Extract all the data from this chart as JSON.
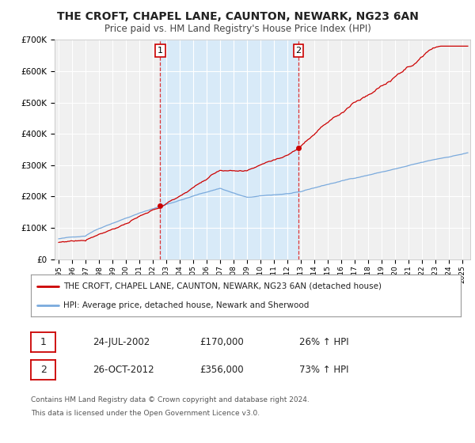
{
  "title": "THE CROFT, CHAPEL LANE, CAUNTON, NEWARK, NG23 6AN",
  "subtitle": "Price paid vs. HM Land Registry's House Price Index (HPI)",
  "ylim": [
    0,
    700000
  ],
  "yticks": [
    0,
    100000,
    200000,
    300000,
    400000,
    500000,
    600000,
    700000
  ],
  "ytick_labels": [
    "£0",
    "£100K",
    "£200K",
    "£300K",
    "£400K",
    "£500K",
    "£600K",
    "£700K"
  ],
  "xlim_start": 1994.7,
  "xlim_end": 2025.6,
  "background_color": "#ffffff",
  "plot_bg_color": "#f0f0f0",
  "grid_color": "#ffffff",
  "highlight_bg_color": "#d8eaf8",
  "sale1_x": 2002.55,
  "sale1_y": 170000,
  "sale1_label": "1",
  "sale1_date": "24-JUL-2002",
  "sale1_price": "£170,000",
  "sale1_hpi": "26% ↑ HPI",
  "sale2_x": 2012.82,
  "sale2_y": 356000,
  "sale2_label": "2",
  "sale2_date": "26-OCT-2012",
  "sale2_price": "£356,000",
  "sale2_hpi": "73% ↑ HPI",
  "property_line_color": "#cc0000",
  "hpi_line_color": "#7aaadd",
  "legend_property_label": "THE CROFT, CHAPEL LANE, CAUNTON, NEWARK, NG23 6AN (detached house)",
  "legend_hpi_label": "HPI: Average price, detached house, Newark and Sherwood",
  "footer_line1": "Contains HM Land Registry data © Crown copyright and database right 2024.",
  "footer_line2": "This data is licensed under the Open Government Licence v3.0."
}
